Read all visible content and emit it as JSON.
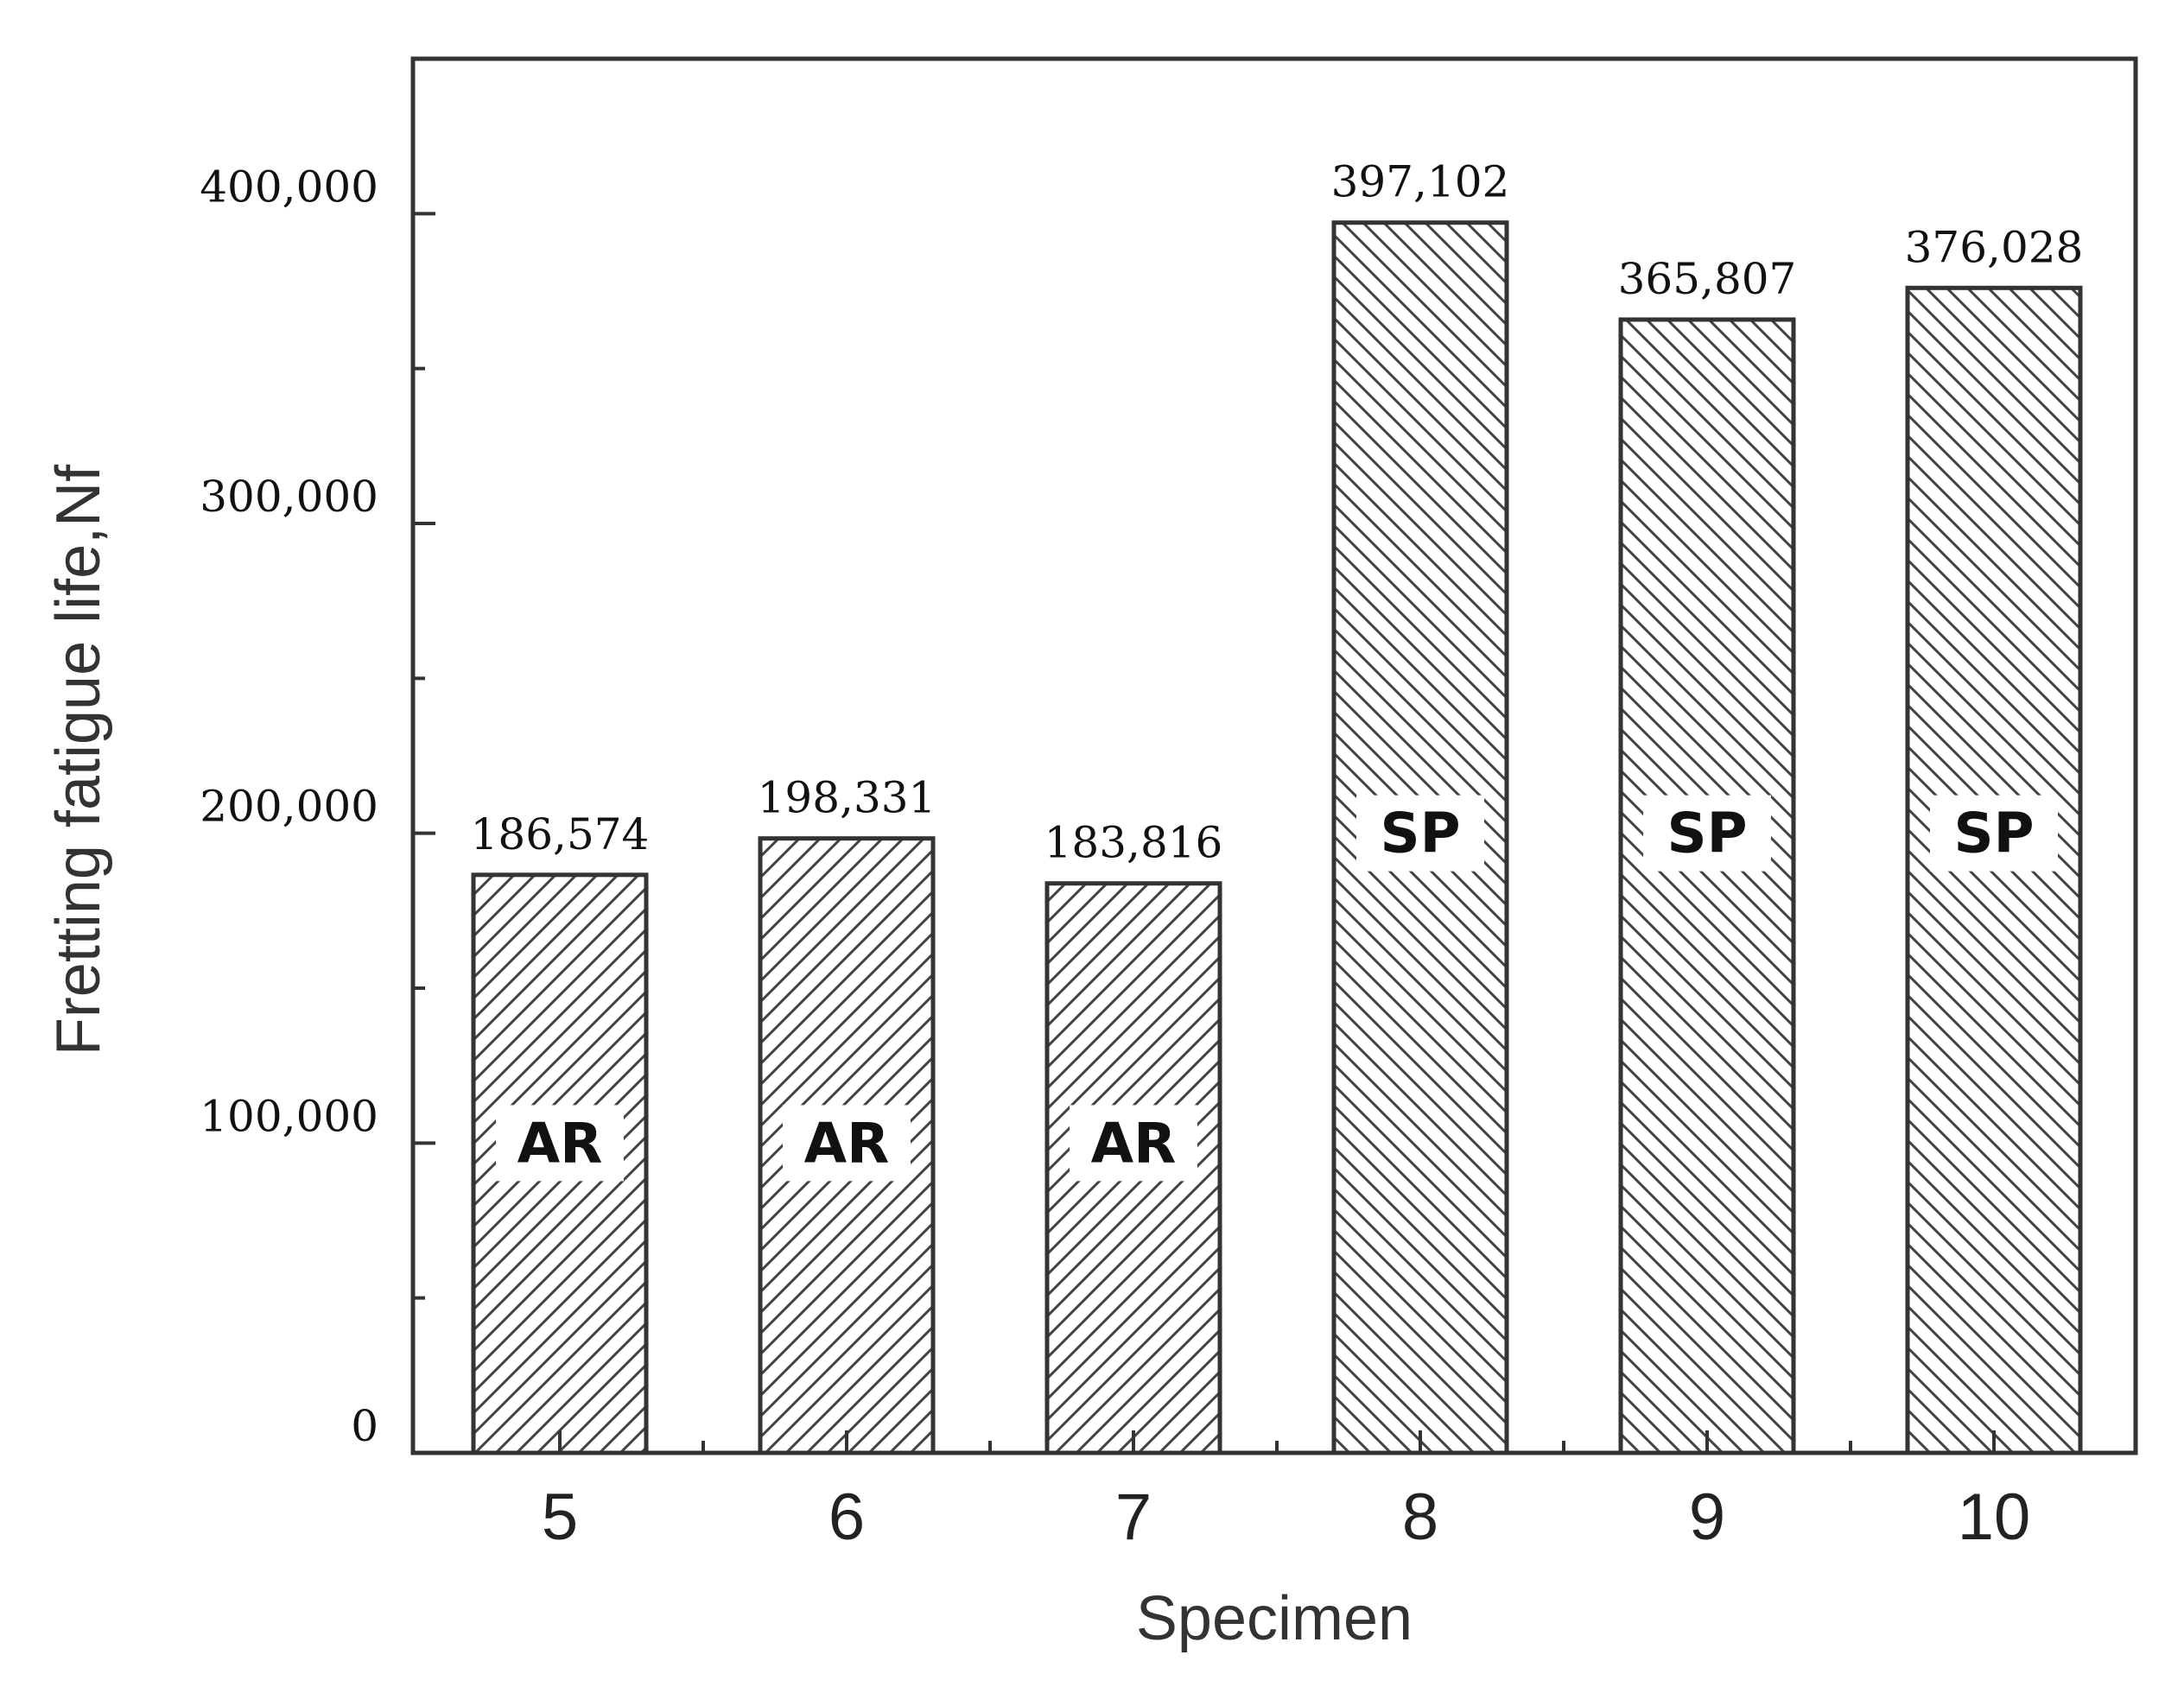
{
  "chart_data": {
    "type": "bar",
    "categories": [
      "5",
      "6",
      "7",
      "8",
      "9",
      "10"
    ],
    "values": [
      186574,
      198331,
      183816,
      397102,
      365807,
      376028
    ],
    "value_labels": [
      "186,574",
      "198,331",
      "183,816",
      "397,102",
      "365,807",
      "376,028"
    ],
    "group_labels": [
      "AR",
      "AR",
      "AR",
      "SP",
      "SP",
      "SP"
    ],
    "group_label_values": [
      100000,
      100000,
      100000,
      200000,
      200000,
      200000
    ],
    "xlabel": "Specimen",
    "ylabel": "Fretting fatigue life,Nf",
    "ylim": [
      0,
      450000
    ],
    "major_ticks": [
      0,
      100000,
      200000,
      300000,
      400000
    ],
    "major_tick_labels": [
      "0",
      "100,000",
      "200,000",
      "300,000",
      "400,000"
    ],
    "minor_ticks": [
      50000,
      150000,
      250000,
      350000
    ],
    "hatch": {
      "AR": "forward-diagonal",
      "SP": "backward-diagonal"
    },
    "colors": {
      "bar_fill": "#ffffff",
      "bar_edge": "#333333",
      "hatch": "#444444",
      "axis": "#333333"
    },
    "grid": false,
    "legend": "none"
  }
}
